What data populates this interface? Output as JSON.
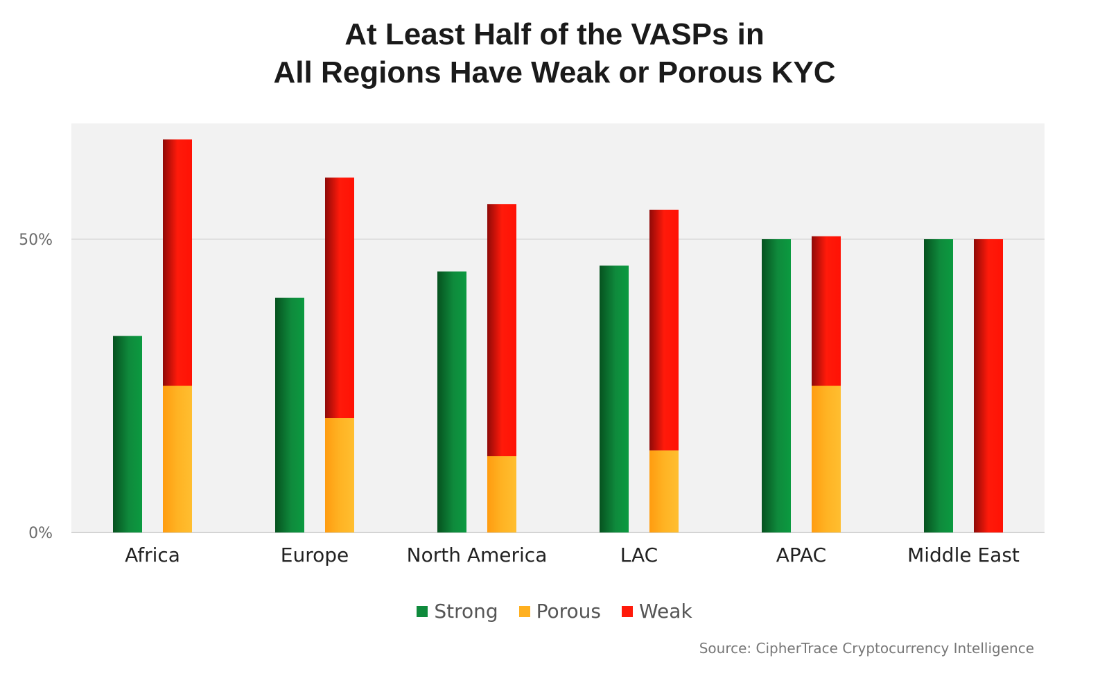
{
  "chart_data": {
    "type": "bar",
    "title_line1": "At Least Half of the VASPs in",
    "title_line2": "All Regions Have Weak or Porous KYC",
    "categories": [
      "Africa",
      "Europe",
      "North America",
      "LAC",
      "APAC",
      "Middle East"
    ],
    "series": [
      {
        "name": "Strong",
        "stack": "strong",
        "values": [
          33.5,
          40,
          44.5,
          45.5,
          50,
          50
        ],
        "color": "#0f8a3c"
      },
      {
        "name": "Porous",
        "stack": "weak_porous",
        "values": [
          25,
          19.5,
          13,
          14,
          25,
          0
        ],
        "color": "#ffb020"
      },
      {
        "name": "Weak",
        "stack": "weak_porous",
        "values": [
          42,
          41,
          43,
          41,
          25.5,
          50
        ],
        "color": "#ff1a0a"
      }
    ],
    "yticks": [
      {
        "value": 0,
        "label": "0%"
      },
      {
        "value": 50,
        "label": "50%"
      }
    ],
    "ylim": [
      0,
      70
    ],
    "grid": true,
    "legend": "bottom-center",
    "source": "Source: CipherTrace Cryptocurrency Intelligence"
  }
}
